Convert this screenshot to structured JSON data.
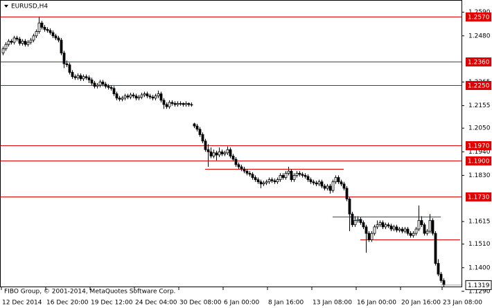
{
  "chart_data": {
    "type": "candlestick",
    "title": "EURUSD,H4",
    "footer": "FIBO Group, © 2001-2014, MetaQuotes Software Corp.",
    "ylim": [
      1.1309,
      1.2647
    ],
    "yticks": [
      {
        "value": 1.259,
        "label": "1.2590"
      },
      {
        "value": 1.248,
        "label": "1.2480"
      },
      1.2265,
      1.2155,
      {
        "value": 1.205,
        "label": "1.2050"
      },
      {
        "value": 1.194,
        "label": "1.1940"
      },
      {
        "value": 1.183,
        "label": "1.1830"
      },
      1.1615,
      {
        "value": 1.151,
        "label": "1.1510"
      },
      {
        "value": 1.14,
        "label": "1.1400"
      },
      {
        "value": 1.129,
        "label": "1.1290"
      }
    ],
    "levels": [
      {
        "value": 1.257,
        "label": "1.2570"
      },
      {
        "value": 1.236,
        "label": "1.2360"
      },
      {
        "value": 1.225,
        "label": "1.2250"
      },
      {
        "value": 1.197,
        "label": "1.1970"
      },
      {
        "value": 1.19,
        "label": "1.1900"
      },
      {
        "value": 1.173,
        "label": "1.1730"
      }
    ],
    "level_color": "#e00000",
    "trendlines": [
      {
        "value": 1.1861,
        "x": [
          73,
          123
        ]
      },
      {
        "value": 1.1638,
        "x": [
          119,
          158
        ]
      },
      {
        "value": 1.1532,
        "x": [
          129,
          165
        ]
      }
    ],
    "current_price": {
      "value": 1.1319,
      "label": "1.1319"
    },
    "categories": [
      "12 Dec 2014",
      null,
      null,
      null,
      null,
      null,
      null,
      null,
      null,
      null,
      null,
      null,
      null,
      null,
      null,
      null,
      "16 Dec 20:00",
      null,
      null,
      null,
      null,
      null,
      null,
      null,
      null,
      null,
      null,
      null,
      null,
      null,
      null,
      null,
      "19 Dec 12:00",
      null,
      null,
      null,
      null,
      null,
      null,
      null,
      null,
      null,
      null,
      null,
      null,
      null,
      null,
      null,
      "24 Dec 04:00",
      null,
      null,
      null,
      null,
      null,
      null,
      null,
      null,
      null,
      null,
      null,
      null,
      null,
      null,
      null,
      "30 Dec 08:00",
      null,
      null,
      null,
      null,
      null,
      null,
      null,
      null,
      null,
      null,
      null,
      null,
      null,
      null,
      null,
      "6 Jan 00:00",
      null,
      null,
      null,
      null,
      null,
      null,
      null,
      null,
      null,
      null,
      null,
      null,
      null,
      null,
      null,
      "8 Jan 16:00",
      null,
      null,
      null,
      null,
      null,
      null,
      null,
      null,
      null,
      null,
      null,
      null,
      null,
      null,
      null,
      "13 Jan 08:00",
      null,
      null,
      null,
      null,
      null,
      null,
      null,
      null,
      null,
      null,
      null,
      null,
      null,
      null,
      null,
      "16 Jan 00:00",
      null,
      null,
      null,
      null,
      null,
      null,
      null,
      null,
      null,
      null,
      null,
      null,
      null,
      null,
      null,
      "20 Jan 16:00",
      null,
      null,
      null,
      null,
      null,
      null,
      null,
      null,
      null,
      null,
      null,
      null,
      null,
      null,
      "23 Jan 08:00"
    ],
    "candles": [
      [
        1.24,
        1.243,
        1.239,
        1.242
      ],
      [
        1.242,
        1.245,
        1.241,
        1.244
      ],
      [
        1.244,
        1.2465,
        1.243,
        1.2455
      ],
      [
        1.2455,
        1.2465,
        1.244,
        1.245
      ],
      [
        1.245,
        1.248,
        1.244,
        1.247
      ],
      [
        1.247,
        1.248,
        1.2455,
        1.2465
      ],
      [
        1.2465,
        1.2475,
        1.2435,
        1.2445
      ],
      [
        1.2445,
        1.2465,
        1.2435,
        1.2455
      ],
      [
        1.2455,
        1.2465,
        1.243,
        1.244
      ],
      [
        1.244,
        1.246,
        1.243,
        1.245
      ],
      [
        1.245,
        1.247,
        1.244,
        1.246
      ],
      [
        1.246,
        1.249,
        1.245,
        1.248
      ],
      [
        1.248,
        1.251,
        1.247,
        1.25
      ],
      [
        1.25,
        1.257,
        1.249,
        1.254
      ],
      [
        1.254,
        1.255,
        1.251,
        1.252
      ],
      [
        1.252,
        1.253,
        1.25,
        1.251
      ],
      [
        1.251,
        1.252,
        1.2495,
        1.2505
      ],
      [
        1.2505,
        1.2515,
        1.2485,
        1.2495
      ],
      [
        1.2495,
        1.2505,
        1.247,
        1.248
      ],
      [
        1.248,
        1.249,
        1.246,
        1.247
      ],
      [
        1.247,
        1.248,
        1.245,
        1.246
      ],
      [
        1.246,
        1.247,
        1.239,
        1.24
      ],
      [
        1.24,
        1.241,
        1.233,
        1.235
      ],
      [
        1.235,
        1.2365,
        1.2335,
        1.2345
      ],
      [
        1.2345,
        1.2355,
        1.23,
        1.231
      ],
      [
        1.231,
        1.232,
        1.228,
        1.229
      ],
      [
        1.229,
        1.23,
        1.2275,
        1.2285
      ],
      [
        1.2285,
        1.2305,
        1.2275,
        1.2295
      ],
      [
        1.2295,
        1.2305,
        1.227,
        1.228
      ],
      [
        1.228,
        1.23,
        1.227,
        1.229
      ],
      [
        1.229,
        1.23,
        1.2275,
        1.2285
      ],
      [
        1.2285,
        1.2295,
        1.226,
        1.2275
      ],
      [
        1.2275,
        1.2285,
        1.225,
        1.226
      ],
      [
        1.226,
        1.227,
        1.2235,
        1.2245
      ],
      [
        1.2245,
        1.226,
        1.2235,
        1.225
      ],
      [
        1.225,
        1.2275,
        1.224,
        1.2265
      ],
      [
        1.2265,
        1.2275,
        1.2245,
        1.2255
      ],
      [
        1.2255,
        1.2265,
        1.2235,
        1.2245
      ],
      [
        1.2245,
        1.2255,
        1.223,
        1.224
      ],
      [
        1.224,
        1.225,
        1.2225,
        1.2235
      ],
      [
        1.2235,
        1.2245,
        1.22,
        1.221
      ],
      [
        1.221,
        1.222,
        1.218,
        1.219
      ],
      [
        1.219,
        1.22,
        1.2175,
        1.2185
      ],
      [
        1.2185,
        1.22,
        1.2175,
        1.219
      ],
      [
        1.219,
        1.221,
        1.218,
        1.22
      ],
      [
        1.22,
        1.221,
        1.2185,
        1.2195
      ],
      [
        1.2195,
        1.2215,
        1.2185,
        1.2205
      ],
      [
        1.2205,
        1.2215,
        1.219,
        1.22
      ],
      [
        1.22,
        1.221,
        1.218,
        1.219
      ],
      [
        1.219,
        1.2205,
        1.218,
        1.2195
      ],
      [
        1.2195,
        1.2215,
        1.2185,
        1.2205
      ],
      [
        1.2205,
        1.222,
        1.2195,
        1.221
      ],
      [
        1.221,
        1.222,
        1.219,
        1.22
      ],
      [
        1.22,
        1.221,
        1.2185,
        1.2195
      ],
      [
        1.2195,
        1.2205,
        1.218,
        1.219
      ],
      [
        1.219,
        1.221,
        1.218,
        1.22
      ],
      [
        1.22,
        1.2225,
        1.219,
        1.221
      ],
      [
        1.221,
        1.222,
        1.217,
        1.218
      ],
      [
        1.218,
        1.219,
        1.214,
        1.216
      ],
      [
        1.216,
        1.217,
        1.214,
        1.215
      ],
      [
        1.215,
        1.218,
        1.214,
        1.217
      ],
      [
        1.217,
        1.218,
        1.2155,
        1.2165
      ],
      [
        1.2165,
        1.2175,
        1.215,
        1.216
      ],
      [
        1.216,
        1.2175,
        1.215,
        1.2165
      ],
      [
        1.2165,
        1.2175,
        1.2155,
        1.2165
      ],
      [
        1.2165,
        1.217,
        1.215,
        1.216
      ],
      [
        1.216,
        1.2175,
        1.215,
        1.2165
      ],
      [
        1.2165,
        1.217,
        1.215,
        1.216
      ],
      [
        1.216,
        1.217,
        1.215,
        1.216
      ],
      [
        1.207,
        1.2075,
        1.205,
        1.206
      ],
      [
        1.206,
        1.207,
        1.2035,
        1.2045
      ],
      [
        1.2045,
        1.2055,
        1.201,
        1.202
      ],
      [
        1.202,
        1.203,
        1.198,
        1.199
      ],
      [
        1.199,
        1.2,
        1.194,
        1.195
      ],
      [
        1.195,
        1.1975,
        1.187,
        1.194
      ],
      [
        1.194,
        1.196,
        1.191,
        1.192
      ],
      [
        1.192,
        1.195,
        1.191,
        1.1935
      ],
      [
        1.1935,
        1.1945,
        1.19,
        1.1925
      ],
      [
        1.1925,
        1.196,
        1.1915,
        1.194
      ],
      [
        1.194,
        1.195,
        1.192,
        1.193
      ],
      [
        1.193,
        1.1945,
        1.192,
        1.1935
      ],
      [
        1.1935,
        1.1965,
        1.1925,
        1.195
      ],
      [
        1.195,
        1.196,
        1.191,
        1.192
      ],
      [
        1.192,
        1.193,
        1.1895,
        1.1905
      ],
      [
        1.1905,
        1.1915,
        1.187,
        1.188
      ],
      [
        1.188,
        1.189,
        1.186,
        1.187
      ],
      [
        1.187,
        1.188,
        1.185,
        1.186
      ],
      [
        1.186,
        1.187,
        1.184,
        1.185
      ],
      [
        1.185,
        1.186,
        1.183,
        1.184
      ],
      [
        1.184,
        1.185,
        1.1825,
        1.1835
      ],
      [
        1.1835,
        1.1845,
        1.181,
        1.182
      ],
      [
        1.182,
        1.183,
        1.18,
        1.181
      ],
      [
        1.181,
        1.182,
        1.179,
        1.18
      ],
      [
        1.18,
        1.181,
        1.177,
        1.179
      ],
      [
        1.179,
        1.1805,
        1.178,
        1.1795
      ],
      [
        1.1795,
        1.181,
        1.1785,
        1.18
      ],
      [
        1.18,
        1.182,
        1.179,
        1.181
      ],
      [
        1.181,
        1.182,
        1.1795,
        1.1805
      ],
      [
        1.1805,
        1.1815,
        1.179,
        1.18
      ],
      [
        1.18,
        1.182,
        1.179,
        1.181
      ],
      [
        1.181,
        1.184,
        1.18,
        1.183
      ],
      [
        1.183,
        1.184,
        1.181,
        1.182
      ],
      [
        1.182,
        1.185,
        1.181,
        1.184
      ],
      [
        1.184,
        1.187,
        1.183,
        1.185
      ],
      [
        1.185,
        1.186,
        1.18,
        1.181
      ],
      [
        1.181,
        1.184,
        1.18,
        1.183
      ],
      [
        1.183,
        1.185,
        1.182,
        1.184
      ],
      [
        1.184,
        1.185,
        1.1825,
        1.1835
      ],
      [
        1.1835,
        1.1845,
        1.182,
        1.183
      ],
      [
        1.183,
        1.184,
        1.1815,
        1.1825
      ],
      [
        1.1825,
        1.1835,
        1.18,
        1.181
      ],
      [
        1.181,
        1.182,
        1.179,
        1.18
      ],
      [
        1.18,
        1.181,
        1.1785,
        1.1795
      ],
      [
        1.1795,
        1.1805,
        1.178,
        1.179
      ],
      [
        1.179,
        1.181,
        1.178,
        1.18
      ],
      [
        1.18,
        1.181,
        1.177,
        1.178
      ],
      [
        1.178,
        1.179,
        1.176,
        1.177
      ],
      [
        1.177,
        1.179,
        1.176,
        1.178
      ],
      [
        1.178,
        1.179,
        1.1745,
        1.176
      ],
      [
        1.176,
        1.181,
        1.175,
        1.18
      ],
      [
        1.18,
        1.183,
        1.179,
        1.182
      ],
      [
        1.182,
        1.183,
        1.179,
        1.18
      ],
      [
        1.18,
        1.181,
        1.178,
        1.179
      ],
      [
        1.179,
        1.18,
        1.176,
        1.177
      ],
      [
        1.177,
        1.178,
        1.171,
        1.172
      ],
      [
        1.172,
        1.173,
        1.157,
        1.165
      ],
      [
        1.165,
        1.166,
        1.159,
        1.16
      ],
      [
        1.16,
        1.164,
        1.159,
        1.162
      ],
      [
        1.162,
        1.164,
        1.161,
        1.1625
      ],
      [
        1.1625,
        1.1635,
        1.16,
        1.161
      ],
      [
        1.161,
        1.162,
        1.158,
        1.159
      ],
      [
        1.159,
        1.16,
        1.147,
        1.156
      ],
      [
        1.156,
        1.157,
        1.152,
        1.153
      ],
      [
        1.153,
        1.157,
        1.152,
        1.156
      ],
      [
        1.156,
        1.16,
        1.155,
        1.159
      ],
      [
        1.159,
        1.162,
        1.158,
        1.16
      ],
      [
        1.16,
        1.162,
        1.159,
        1.161
      ],
      [
        1.161,
        1.162,
        1.158,
        1.159
      ],
      [
        1.159,
        1.161,
        1.158,
        1.16
      ],
      [
        1.16,
        1.161,
        1.1585,
        1.1595
      ],
      [
        1.1595,
        1.1605,
        1.157,
        1.158
      ],
      [
        1.158,
        1.16,
        1.157,
        1.159
      ],
      [
        1.159,
        1.16,
        1.1565,
        1.1575
      ],
      [
        1.1575,
        1.159,
        1.1565,
        1.158
      ],
      [
        1.158,
        1.159,
        1.156,
        1.157
      ],
      [
        1.157,
        1.159,
        1.156,
        1.158
      ],
      [
        1.158,
        1.159,
        1.155,
        1.156
      ],
      [
        1.156,
        1.157,
        1.154,
        1.155
      ],
      [
        1.155,
        1.157,
        1.154,
        1.156
      ],
      [
        1.156,
        1.159,
        1.155,
        1.158
      ],
      [
        1.158,
        1.169,
        1.157,
        1.162
      ],
      [
        1.162,
        1.164,
        1.159,
        1.16
      ],
      [
        1.16,
        1.161,
        1.155,
        1.156
      ],
      [
        1.156,
        1.158,
        1.155,
        1.157
      ],
      [
        1.157,
        1.165,
        1.156,
        1.162
      ],
      [
        1.162,
        1.163,
        1.155,
        1.156
      ],
      [
        1.156,
        1.157,
        1.141,
        1.142
      ],
      [
        1.142,
        1.144,
        1.136,
        1.137
      ],
      [
        1.137,
        1.138,
        1.133,
        1.134
      ],
      [
        1.134,
        1.135,
        1.131,
        1.1319
      ]
    ]
  }
}
